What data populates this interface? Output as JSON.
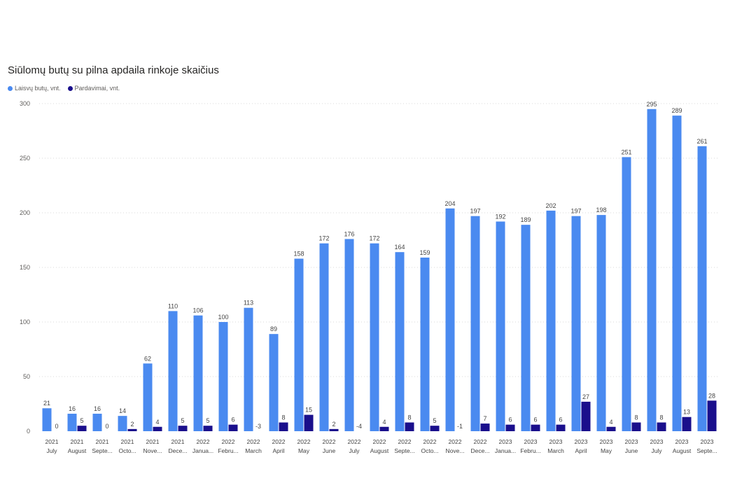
{
  "chart_data": {
    "type": "bar",
    "title": "Siūlomų butų su pilna apdaila rinkoje skaičius",
    "legend_position": "top-left",
    "grid": true,
    "ylim": [
      0,
      300
    ],
    "yticks": [
      0,
      50,
      100,
      150,
      200,
      250,
      300
    ],
    "categories": [
      {
        "year": "2021",
        "month": "July"
      },
      {
        "year": "2021",
        "month": "August"
      },
      {
        "year": "2021",
        "month": "Septe..."
      },
      {
        "year": "2021",
        "month": "Octo..."
      },
      {
        "year": "2021",
        "month": "Nove..."
      },
      {
        "year": "2021",
        "month": "Dece..."
      },
      {
        "year": "2022",
        "month": "Janua..."
      },
      {
        "year": "2022",
        "month": "Febru..."
      },
      {
        "year": "2022",
        "month": "March"
      },
      {
        "year": "2022",
        "month": "April"
      },
      {
        "year": "2022",
        "month": "May"
      },
      {
        "year": "2022",
        "month": "June"
      },
      {
        "year": "2022",
        "month": "July"
      },
      {
        "year": "2022",
        "month": "August"
      },
      {
        "year": "2022",
        "month": "Septe..."
      },
      {
        "year": "2022",
        "month": "Octo..."
      },
      {
        "year": "2022",
        "month": "Nove..."
      },
      {
        "year": "2022",
        "month": "Dece..."
      },
      {
        "year": "2023",
        "month": "Janua..."
      },
      {
        "year": "2023",
        "month": "Febru..."
      },
      {
        "year": "2023",
        "month": "March"
      },
      {
        "year": "2023",
        "month": "April"
      },
      {
        "year": "2023",
        "month": "May"
      },
      {
        "year": "2023",
        "month": "June"
      },
      {
        "year": "2023",
        "month": "July"
      },
      {
        "year": "2023",
        "month": "August"
      },
      {
        "year": "2023",
        "month": "Septe..."
      }
    ],
    "series": [
      {
        "name": "Laisvų butų, vnt.",
        "color": "#4a8af0",
        "values": [
          21,
          16,
          16,
          14,
          62,
          110,
          106,
          100,
          113,
          89,
          158,
          172,
          176,
          172,
          164,
          159,
          204,
          197,
          192,
          189,
          202,
          197,
          198,
          251,
          295,
          289,
          261
        ]
      },
      {
        "name": "Pardavimai, vnt.",
        "color": "#1a0f8c",
        "values": [
          0,
          5,
          0,
          2,
          4,
          5,
          5,
          6,
          -3,
          8,
          15,
          2,
          -4,
          4,
          8,
          5,
          -1,
          7,
          6,
          6,
          6,
          27,
          4,
          8,
          8,
          13,
          28
        ]
      }
    ]
  }
}
